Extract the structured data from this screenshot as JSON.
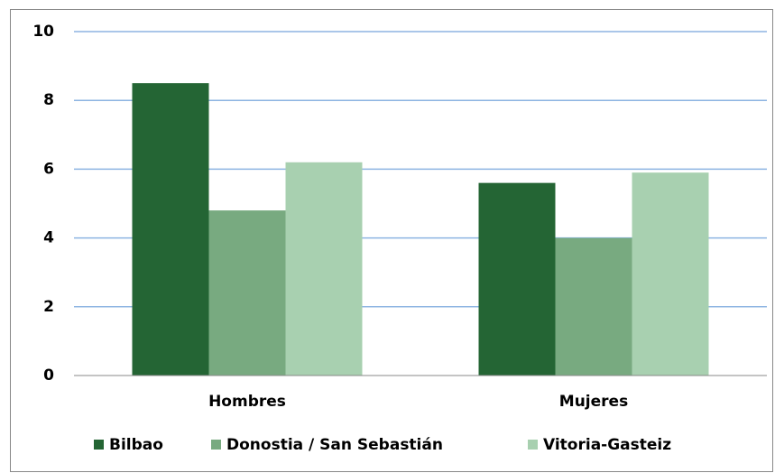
{
  "chart_data": {
    "type": "bar",
    "categories": [
      "Hombres",
      "Mujeres"
    ],
    "series": [
      {
        "name": "Bilbao",
        "color": "#246534",
        "values": [
          8.5,
          5.6
        ]
      },
      {
        "name": "Donostia / San Sebastián",
        "color": "#78aa80",
        "values": [
          4.8,
          4.0
        ]
      },
      {
        "name": "Vitoria-Gasteiz",
        "color": "#a8d0b0",
        "values": [
          6.2,
          5.9
        ]
      }
    ],
    "ylim": [
      0,
      10
    ],
    "yticks": [
      0,
      2,
      4,
      6,
      8,
      10
    ],
    "grid": true,
    "legend": "bottom"
  }
}
